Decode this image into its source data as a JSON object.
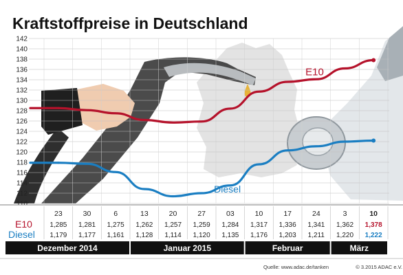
{
  "chart_data": {
    "type": "line",
    "title": "Kraftstoffpreise in Deutschland",
    "ylim": [
      110,
      142
    ],
    "yticks": [
      110,
      112,
      114,
      116,
      118,
      120,
      122,
      124,
      126,
      128,
      130,
      132,
      134,
      136,
      138,
      140,
      142
    ],
    "grid": true,
    "x": [
      "23",
      "30",
      "6",
      "13",
      "20",
      "27",
      "03",
      "10",
      "17",
      "24",
      "3",
      "10"
    ],
    "months": [
      {
        "label": "Dezember 2014",
        "span": [
          0,
          2
        ]
      },
      {
        "label": "Januar 2015",
        "span": [
          3,
          6
        ]
      },
      {
        "label": "Februar",
        "span": [
          7,
          9
        ]
      },
      {
        "label": "März",
        "span": [
          10,
          11
        ]
      }
    ],
    "series": [
      {
        "name": "E10",
        "color": "#b5122b",
        "values": [
          128.5,
          128.1,
          127.5,
          126.2,
          125.7,
          125.9,
          128.4,
          131.7,
          133.6,
          134.1,
          136.2,
          137.8
        ],
        "table": [
          "1,285",
          "1,281",
          "1,275",
          "1,262",
          "1,257",
          "1,259",
          "1,284",
          "1,317",
          "1,336",
          "1,341",
          "1,362",
          "1,378"
        ]
      },
      {
        "name": "Diesel",
        "color": "#1a7ec2",
        "values": [
          117.9,
          117.7,
          116.1,
          112.8,
          111.4,
          112.0,
          113.5,
          117.6,
          120.3,
          121.1,
          122.0,
          122.2
        ],
        "table": [
          "1,179",
          "1,177",
          "1,161",
          "1,128",
          "1,114",
          "1,120",
          "1,135",
          "1,176",
          "1,203",
          "1,211",
          "1,220",
          "1,222"
        ]
      }
    ]
  },
  "source": "Quelle: www.adac.de/tanken",
  "copyright": "© 3.2015  ADAC e.V."
}
